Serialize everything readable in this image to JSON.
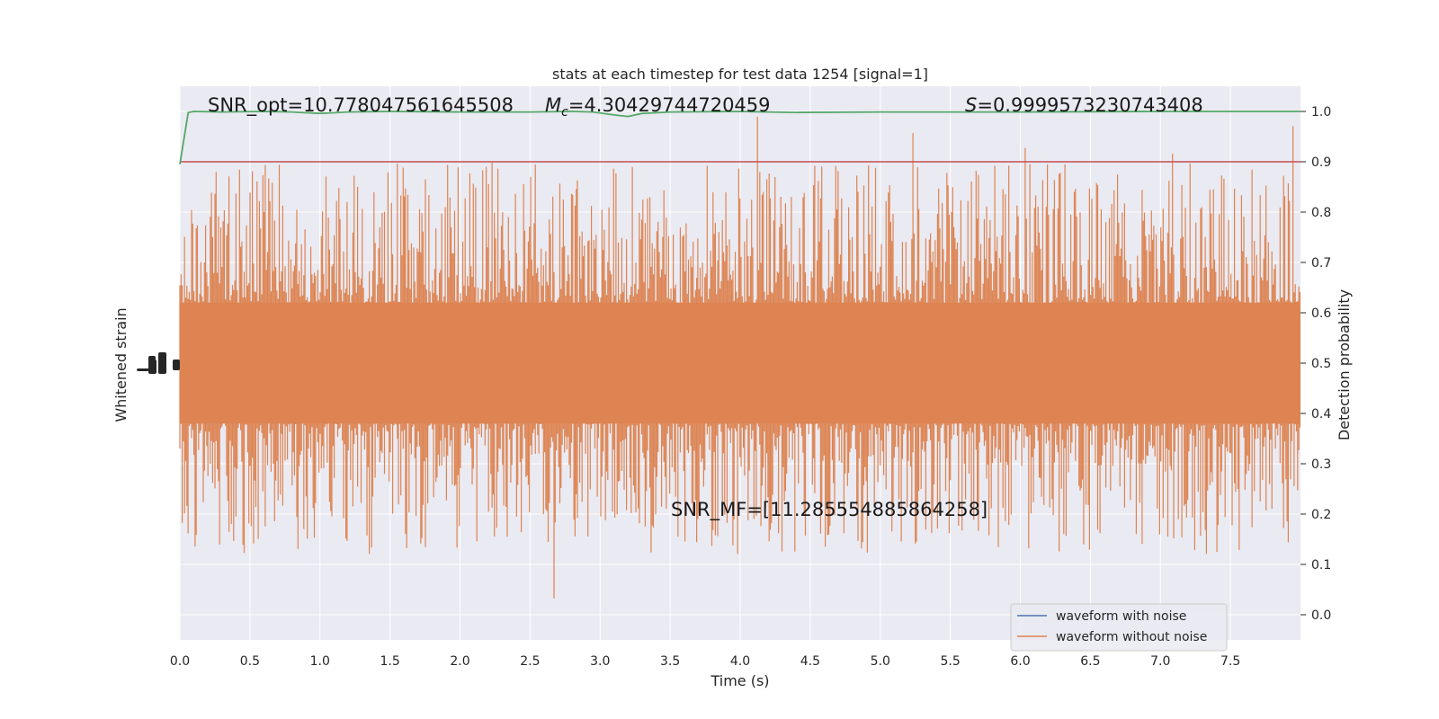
{
  "chart_data": {
    "type": "line",
    "title": "stats at each timestep for test data 1254 [signal=1]",
    "xlabel": "Time (s)",
    "ylabel_left": "Whitened strain",
    "ylabel_right": "Detection probability",
    "xlim": [
      0.0,
      8.0
    ],
    "ylim_right": [
      -0.05,
      1.05
    ],
    "x_ticks": [
      "0.0",
      "0.5",
      "1.0",
      "1.5",
      "2.0",
      "2.5",
      "3.0",
      "3.5",
      "4.0",
      "4.5",
      "5.0",
      "5.5",
      "6.0",
      "6.5",
      "7.0",
      "7.5"
    ],
    "y_ticks_right": [
      "0.0",
      "0.1",
      "0.2",
      "0.3",
      "0.4",
      "0.5",
      "0.6",
      "0.7",
      "0.8",
      "0.9",
      "1.0"
    ],
    "grid": true,
    "threshold": 0.9,
    "legend": {
      "placement": "lower-right",
      "entries": [
        {
          "label": "waveform with noise",
          "color": "#4c72b0"
        },
        {
          "label": "waveform without noise",
          "color": "#dd8452"
        }
      ]
    },
    "annotations": {
      "snr_opt": "SNR_opt=10.778047561645508",
      "mc_symbol": "M",
      "mc_sub": "c",
      "mc_value": "=4.30429744720459",
      "s_symbol": "S",
      "s_value": "=0.9999573230743408",
      "snr_mf": "SNR_MF=[11.285554885864258]"
    },
    "series": [
      {
        "name": "detection probability",
        "color": "#55a868",
        "x": [
          0.0,
          0.06,
          0.1,
          0.3,
          0.6,
          0.8,
          1.0,
          1.2,
          1.5,
          2.0,
          2.5,
          2.8,
          2.95,
          3.1,
          3.2,
          3.3,
          3.5,
          4.0,
          4.2,
          4.4,
          5.0,
          6.0,
          7.0,
          8.0
        ],
        "values": [
          0.895,
          0.998,
          1.0,
          0.999,
          1.0,
          0.999,
          0.996,
          0.999,
          1.0,
          0.999,
          0.999,
          1.0,
          0.999,
          0.993,
          0.99,
          0.996,
          0.999,
          1.0,
          0.999,
          0.998,
          0.999,
          0.999,
          1.0,
          1.0
        ]
      },
      {
        "name": "waveform without noise",
        "color": "#dd8452",
        "description": "dense whitened noise band centered at 0.5 on the shared plot, filling roughly 0.3–0.7 with spikes up to ~0.99 and down to ~0.0",
        "center": 0.5
      }
    ],
    "colors": {
      "background": "#eaeaf2",
      "grid": "#ffffff",
      "threshold_line": "#c44e52",
      "prob_line": "#55a868",
      "strain": "#dd8452",
      "noise": "#4c72b0"
    }
  }
}
